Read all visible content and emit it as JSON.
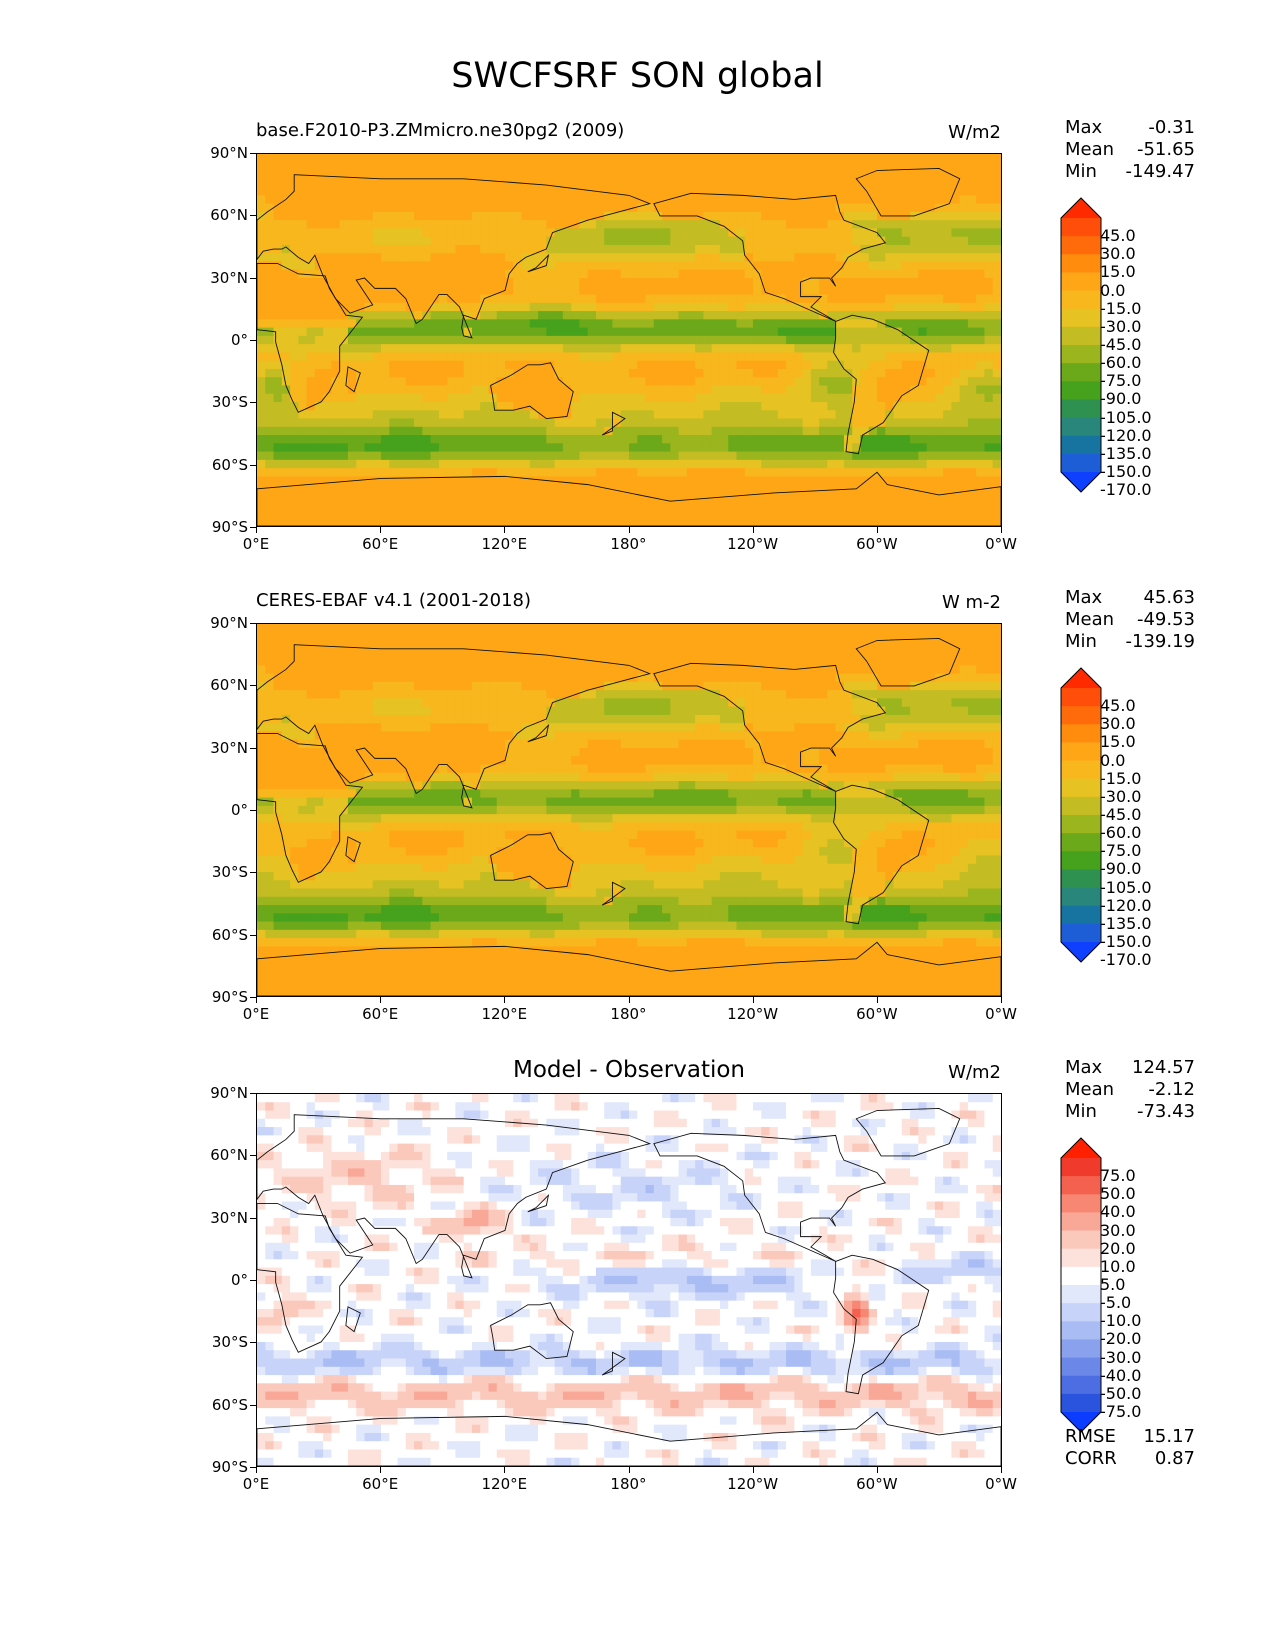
{
  "title": "SWCFSRF SON global",
  "chart_data": [
    {
      "type": "heatmap",
      "title_left": "base.F2010-P3.ZMmicro.ne30pg2 (2009)",
      "title_center": "",
      "units": "W/m2",
      "xlabel": "",
      "ylabel": "",
      "x_ticks": [
        "0°E",
        "60°E",
        "120°E",
        "180°",
        "120°W",
        "60°W",
        "0°W"
      ],
      "y_ticks": [
        "90°N",
        "60°N",
        "30°N",
        "0°",
        "30°S",
        "60°S",
        "90°S"
      ],
      "xlim": [
        0,
        360
      ],
      "ylim": [
        -90,
        90
      ],
      "stats": [
        {
          "label": "Max",
          "value": "-0.31"
        },
        {
          "label": "Mean",
          "value": "-51.65"
        },
        {
          "label": "Min",
          "value": "-149.47"
        }
      ],
      "colorbar": {
        "levels": [
          "45.0",
          "30.0",
          "15.0",
          "0.0",
          "-15.0",
          "-30.0",
          "-45.0",
          "-60.0",
          "-75.0",
          "-90.0",
          "-105.0",
          "-120.0",
          "-135.0",
          "-150.0",
          "-170.0"
        ],
        "colors": [
          "#ff2a00",
          "#ff4d0a",
          "#ff6a0a",
          "#ff8c0c",
          "#ffa617",
          "#f7b71d",
          "#e6c222",
          "#c4bc23",
          "#9ab51e",
          "#6ca91a",
          "#46a11d",
          "#2e9150",
          "#29867a",
          "#1774a0",
          "#1d5ed6",
          "#1040ff"
        ]
      },
      "regions": {
        "tropical_band": "-75.0 to -90.0",
        "southern_ocean": "-120.0 to -135.0",
        "deserts_and_poles": "0.0 to -15.0"
      }
    },
    {
      "type": "heatmap",
      "title_left": "CERES-EBAF v4.1 (2001-2018)",
      "title_center": "",
      "units": "W m-2",
      "xlabel": "",
      "ylabel": "",
      "x_ticks": [
        "0°E",
        "60°E",
        "120°E",
        "180°",
        "120°W",
        "60°W",
        "0°W"
      ],
      "y_ticks": [
        "90°N",
        "60°N",
        "30°N",
        "0°",
        "30°S",
        "60°S",
        "90°S"
      ],
      "xlim": [
        0,
        360
      ],
      "ylim": [
        -90,
        90
      ],
      "stats": [
        {
          "label": "Max",
          "value": "45.63"
        },
        {
          "label": "Mean",
          "value": "-49.53"
        },
        {
          "label": "Min",
          "value": "-139.19"
        }
      ],
      "colorbar": {
        "levels": [
          "45.0",
          "30.0",
          "15.0",
          "0.0",
          "-15.0",
          "-30.0",
          "-45.0",
          "-60.0",
          "-75.0",
          "-90.0",
          "-105.0",
          "-120.0",
          "-135.0",
          "-150.0",
          "-170.0"
        ],
        "colors": [
          "#ff2a00",
          "#ff4d0a",
          "#ff6a0a",
          "#ff8c0c",
          "#ffa617",
          "#f7b71d",
          "#e6c222",
          "#c4bc23",
          "#9ab51e",
          "#6ca91a",
          "#46a11d",
          "#2e9150",
          "#29867a",
          "#1774a0",
          "#1d5ed6",
          "#1040ff"
        ]
      }
    },
    {
      "type": "heatmap",
      "title_left": "",
      "title_center": "Model - Observation",
      "units": "W/m2",
      "xlabel": "",
      "ylabel": "",
      "x_ticks": [
        "0°E",
        "60°E",
        "120°E",
        "180°",
        "120°W",
        "60°W",
        "0°W"
      ],
      "y_ticks": [
        "90°N",
        "60°N",
        "30°N",
        "0°",
        "30°S",
        "60°S",
        "90°S"
      ],
      "xlim": [
        0,
        360
      ],
      "ylim": [
        -90,
        90
      ],
      "stats": [
        {
          "label": "Max",
          "value": "124.57"
        },
        {
          "label": "Mean",
          "value": "-2.12"
        },
        {
          "label": "Min",
          "value": "-73.43"
        }
      ],
      "extra_stats": [
        {
          "label": "RMSE",
          "value": "15.17"
        },
        {
          "label": "CORR",
          "value": "0.87"
        }
      ],
      "colorbar": {
        "levels": [
          "75.0",
          "50.0",
          "40.0",
          "30.0",
          "20.0",
          "10.0",
          "5.0",
          "-5.0",
          "-10.0",
          "-20.0",
          "-30.0",
          "-40.0",
          "-50.0",
          "-75.0"
        ],
        "colors": [
          "#ff2000",
          "#ef3a2c",
          "#f4614f",
          "#f78672",
          "#f9a898",
          "#fbc8bc",
          "#fde2dc",
          "#ffffff",
          "#e1e8fb",
          "#c8d3f9",
          "#a9bcf4",
          "#8aa2ee",
          "#6b88e8",
          "#4d6ee2",
          "#2a54dd",
          "#0b3cff"
        ]
      }
    }
  ]
}
